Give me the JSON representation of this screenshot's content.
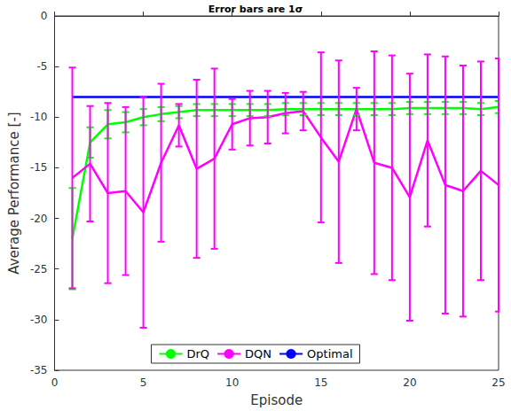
{
  "chart_data": {
    "type": "line",
    "title": "Error bars are 1σ",
    "x_label": "Episode",
    "y_label": "Average Performance [-]",
    "xlim": [
      0,
      25
    ],
    "xticks": [
      0,
      5,
      10,
      15,
      20,
      25
    ],
    "ylim": [
      -35,
      0
    ],
    "yticks": [
      -35,
      -30,
      -25,
      -20,
      -15,
      -10,
      -5,
      0
    ],
    "grid": false,
    "legend": "lower center",
    "series": [
      {
        "name": "DrQ",
        "color": "#00ff00",
        "marker": "none",
        "line_style": "solid",
        "x": [
          1,
          2,
          3,
          4,
          5,
          6,
          7,
          8,
          9,
          10,
          11,
          12,
          13,
          14,
          15,
          16,
          17,
          18,
          19,
          20,
          21,
          22,
          23,
          24,
          25
        ],
        "values": [
          -22,
          -12.5,
          -10.7,
          -10.5,
          -10,
          -9.7,
          -9.5,
          -9.3,
          -9.3,
          -9.3,
          -9.3,
          -9.3,
          -9.2,
          -9.2,
          -9.2,
          -9.2,
          -9.2,
          -9.2,
          -9.2,
          -9.1,
          -9.1,
          -9.1,
          -9.1,
          -9.2,
          -9.0
        ],
        "errors": [
          5,
          1.5,
          1.4,
          1.0,
          0.8,
          0.7,
          0.6,
          0.6,
          0.6,
          0.6,
          0.6,
          0.6,
          0.6,
          0.6,
          0.6,
          0.6,
          0.6,
          0.6,
          0.6,
          0.6,
          0.6,
          0.6,
          0.6,
          0.6,
          0.6
        ]
      },
      {
        "name": "DQN",
        "color": "#ff00ff",
        "marker": "none",
        "line_style": "solid",
        "x": [
          1,
          2,
          3,
          4,
          5,
          6,
          7,
          8,
          9,
          10,
          11,
          12,
          13,
          14,
          15,
          16,
          17,
          18,
          19,
          20,
          21,
          22,
          23,
          24,
          25
        ],
        "values": [
          -16,
          -14.6,
          -17.5,
          -17.3,
          -19.4,
          -14.5,
          -10.8,
          -15.1,
          -14.1,
          -10.7,
          -10.1,
          -10.0,
          -9.6,
          -9.4,
          -12.0,
          -14.4,
          -9.2,
          -14.5,
          -15.0,
          -17.9,
          -12.3,
          -16.7,
          -17.3,
          -15.3,
          -16.7
        ],
        "errors": [
          10.9,
          5.7,
          8.9,
          8.3,
          11.4,
          7.8,
          2.1,
          8.8,
          8.9,
          2.5,
          2.7,
          2.6,
          2.0,
          1.9,
          8.4,
          10.0,
          2.1,
          11.0,
          11.1,
          12.2,
          8.5,
          12.7,
          12.4,
          10.8,
          12.5
        ]
      },
      {
        "name": "Optimal",
        "color": "#0000ff",
        "marker": "none",
        "line_style": "solid",
        "x": [
          1,
          25
        ],
        "values": [
          -8,
          -8
        ]
      }
    ]
  }
}
